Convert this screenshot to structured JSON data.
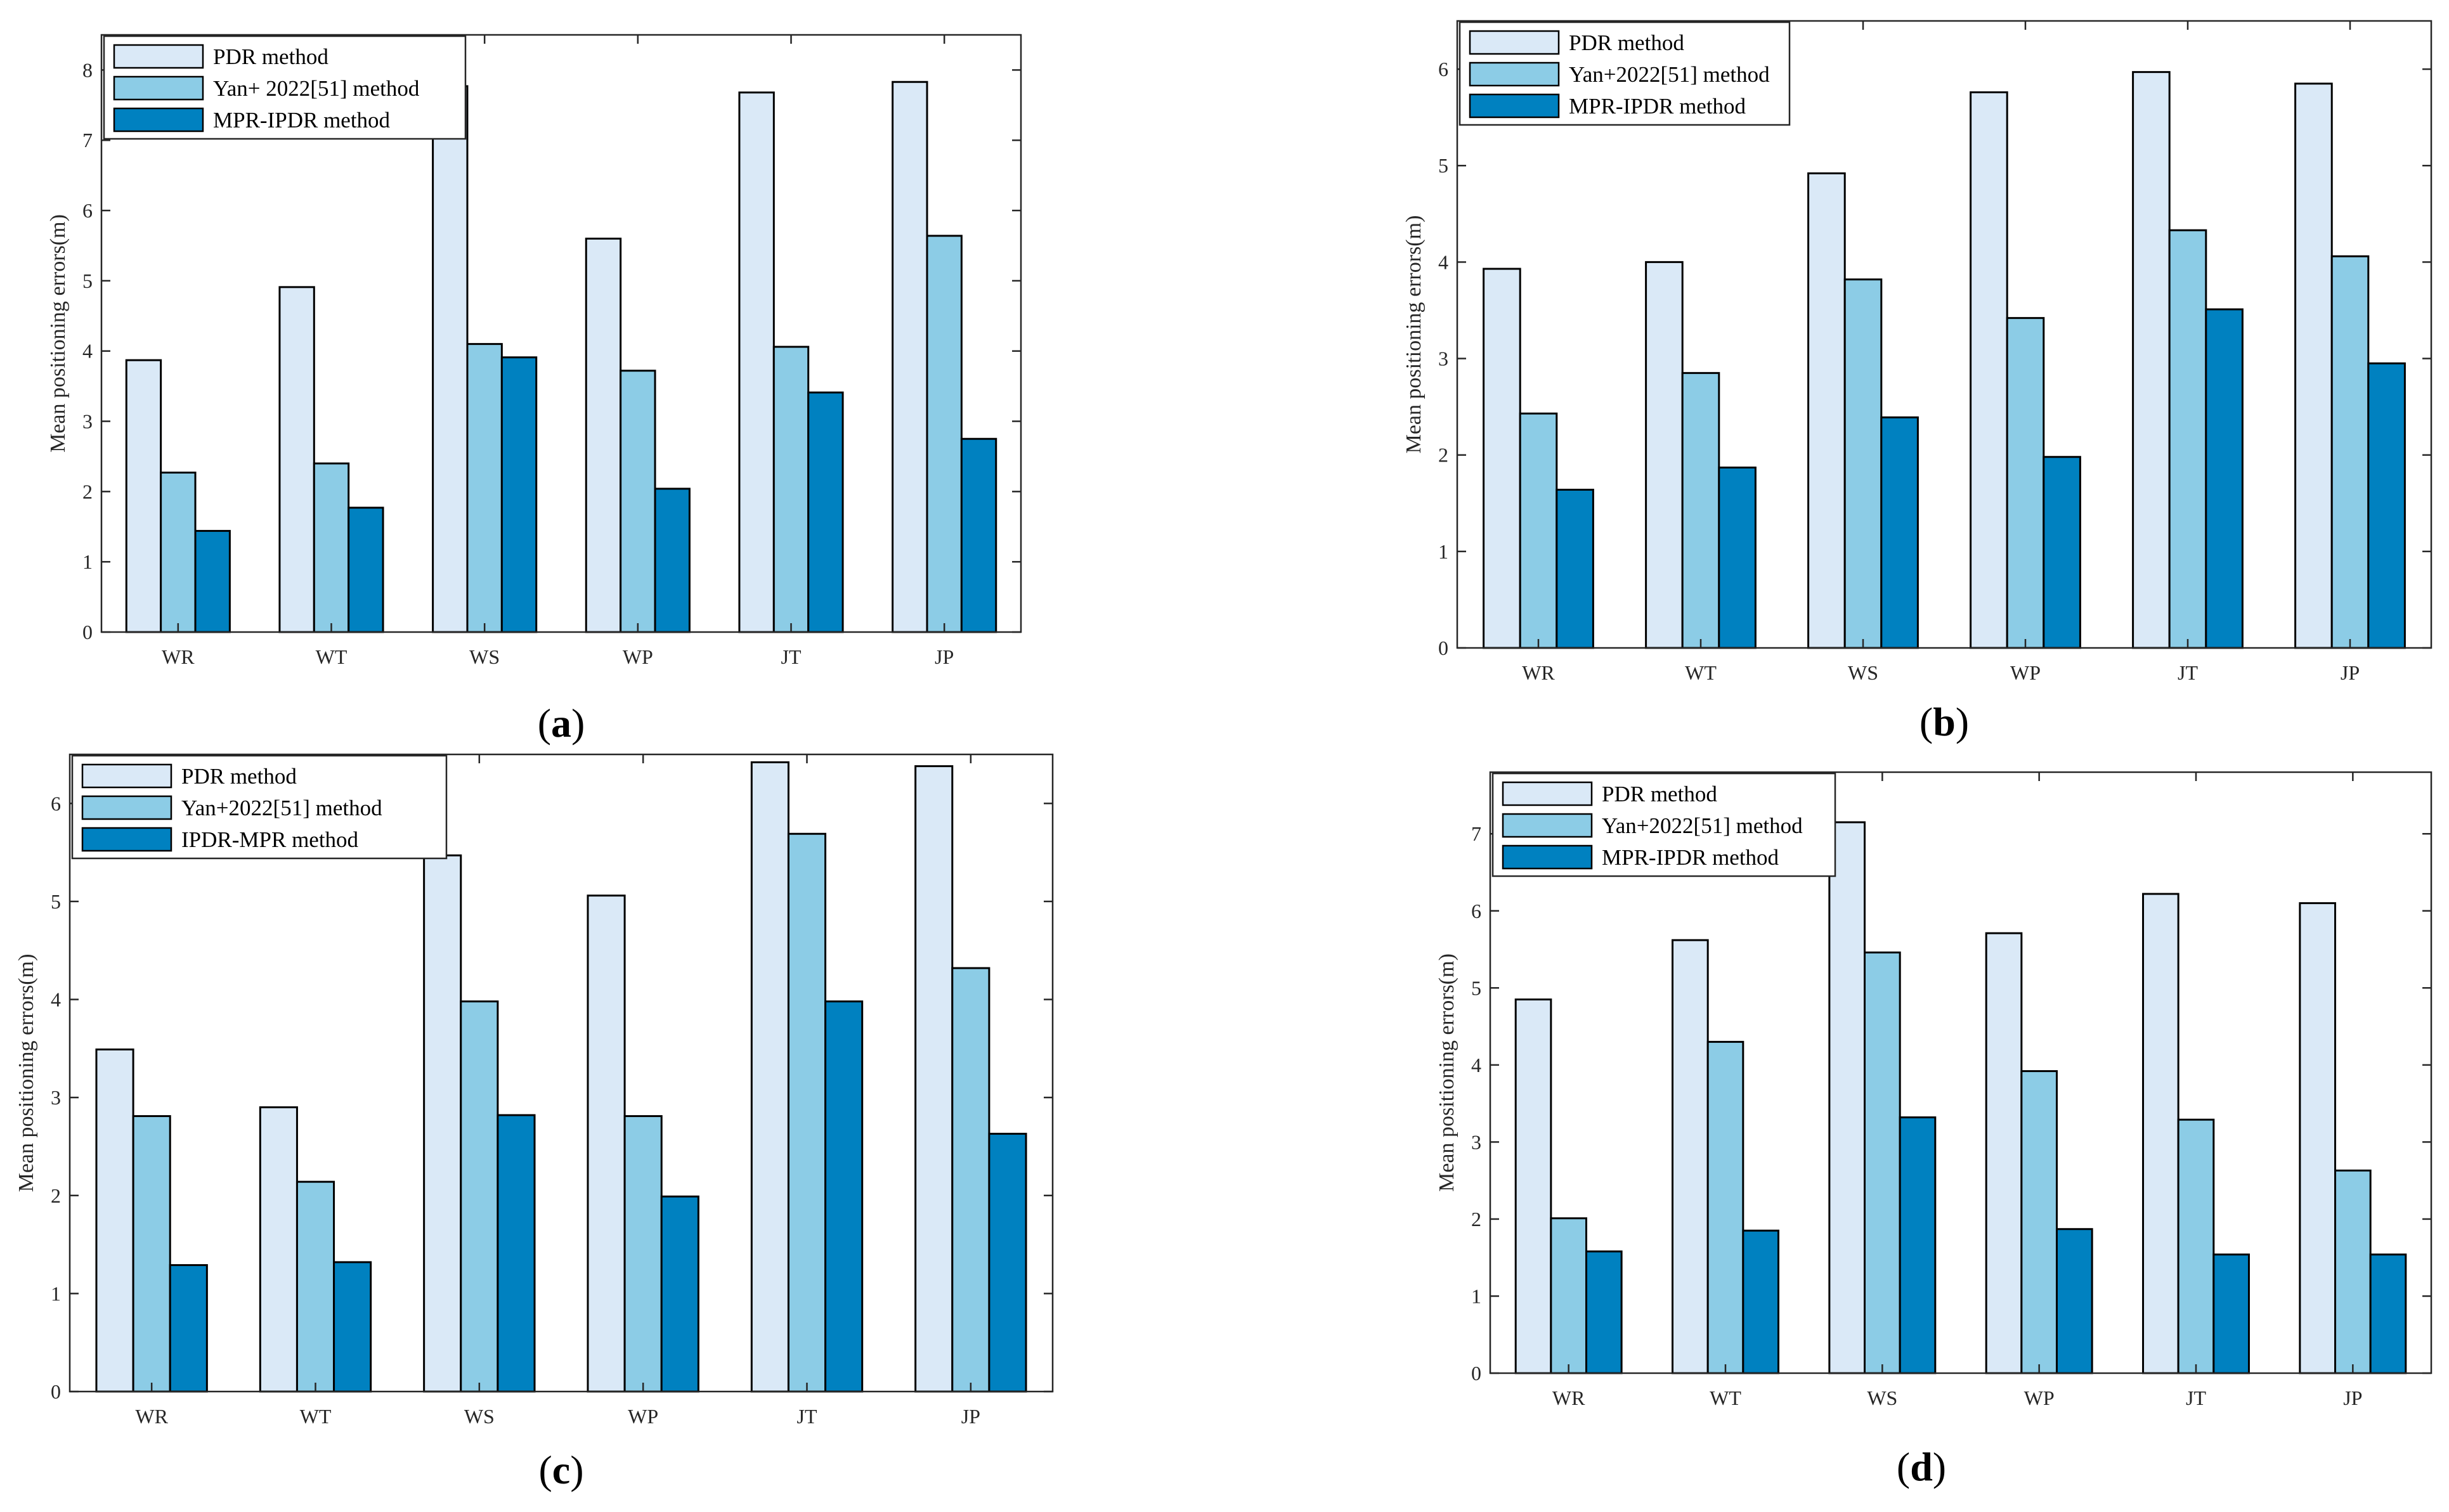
{
  "figure": {
    "colors": {
      "series": [
        "#dae9f7",
        "#8ccce6",
        "#0081c0"
      ],
      "axis": "#262626",
      "bar_edge": "#000000"
    }
  },
  "chart_data": [
    {
      "id": "a",
      "type": "bar",
      "panel_label": {
        "open": "(",
        "letter": "a",
        "close": ")"
      },
      "ylabel": "Mean positioning errors(m)",
      "xlabel": "",
      "ylim": [
        0,
        8.5
      ],
      "yticks": [
        0,
        1,
        2,
        3,
        4,
        5,
        6,
        7,
        8
      ],
      "legend_position": "top-left",
      "categories": [
        "WR",
        "WT",
        "WS",
        "WP",
        "JT",
        "JP"
      ],
      "series": [
        {
          "name": "PDR method",
          "values": [
            3.87,
            4.91,
            7.77,
            5.6,
            7.68,
            7.83
          ]
        },
        {
          "name": "Yan+ 2022[51] method",
          "values": [
            2.27,
            2.4,
            4.1,
            3.72,
            4.06,
            5.64
          ]
        },
        {
          "name": "MPR-IPDR method",
          "values": [
            1.44,
            1.77,
            3.91,
            2.04,
            3.41,
            2.75
          ]
        }
      ]
    },
    {
      "id": "b",
      "type": "bar",
      "panel_label": {
        "open": "(",
        "letter": "b",
        "close": ")"
      },
      "ylabel": "Mean positioning errors(m)",
      "xlabel": "",
      "ylim": [
        0,
        6.5
      ],
      "yticks": [
        0,
        1,
        2,
        3,
        4,
        5,
        6
      ],
      "legend_position": "top-left",
      "categories": [
        "WR",
        "WT",
        "WS",
        "WP",
        "JT",
        "JP"
      ],
      "series": [
        {
          "name": "PDR method",
          "values": [
            3.93,
            4.0,
            4.92,
            5.76,
            5.97,
            5.85
          ]
        },
        {
          "name": "Yan+2022[51] method",
          "values": [
            2.43,
            2.85,
            3.82,
            3.42,
            4.33,
            4.06
          ]
        },
        {
          "name": "MPR-IPDR method",
          "values": [
            1.64,
            1.87,
            2.39,
            1.98,
            3.51,
            2.95
          ]
        }
      ]
    },
    {
      "id": "c",
      "type": "bar",
      "panel_label": {
        "open": "(",
        "letter": "c",
        "close": ")"
      },
      "ylabel": "Mean positioning errors(m)",
      "xlabel": "",
      "ylim": [
        0,
        6.5
      ],
      "yticks": [
        0,
        1,
        2,
        3,
        4,
        5,
        6
      ],
      "legend_position": "top-left",
      "categories": [
        "WR",
        "WT",
        "WS",
        "WP",
        "JT",
        "JP"
      ],
      "series": [
        {
          "name": "PDR method",
          "values": [
            3.49,
            2.9,
            5.47,
            5.06,
            6.42,
            6.38
          ]
        },
        {
          "name": "Yan+2022[51] method",
          "values": [
            2.81,
            2.14,
            3.98,
            2.81,
            5.69,
            4.32
          ]
        },
        {
          "name": "IPDR-MPR method",
          "values": [
            1.29,
            1.32,
            2.82,
            1.99,
            3.98,
            2.63
          ]
        }
      ]
    },
    {
      "id": "d",
      "type": "bar",
      "panel_label": {
        "open": "(",
        "letter": "d",
        "close": ")"
      },
      "ylabel": "Mean positioning errors(m)",
      "xlabel": "",
      "ylim": [
        0,
        7.8
      ],
      "yticks": [
        0,
        1,
        2,
        3,
        4,
        5,
        6,
        7
      ],
      "legend_position": "top-left",
      "categories": [
        "WR",
        "WT",
        "WS",
        "WP",
        "JT",
        "JP"
      ],
      "series": [
        {
          "name": "PDR method",
          "values": [
            4.85,
            5.62,
            7.15,
            5.71,
            6.22,
            6.1
          ]
        },
        {
          "name": "Yan+2022[51] method",
          "values": [
            2.01,
            4.3,
            5.46,
            3.92,
            3.29,
            2.63
          ]
        },
        {
          "name": "MPR-IPDR method",
          "values": [
            1.58,
            1.85,
            3.32,
            1.87,
            1.54,
            1.54
          ]
        }
      ]
    }
  ]
}
